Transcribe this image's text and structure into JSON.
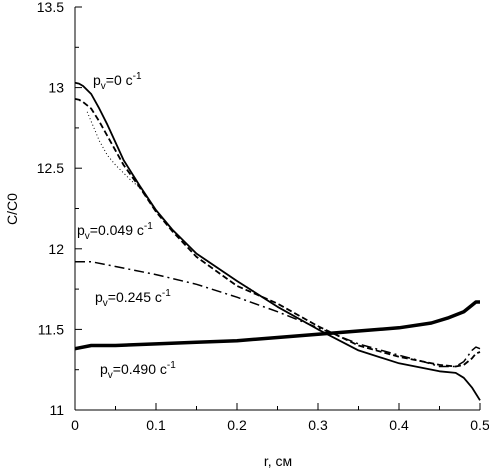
{
  "chart_data": {
    "type": "line",
    "xlabel": "r, см",
    "ylabel": "C/C0",
    "xlim": [
      0,
      0.5
    ],
    "ylim": [
      11,
      13.5
    ],
    "xticks": [
      "0",
      "0.1",
      "0.2",
      "0.3",
      "0.4",
      "0.5"
    ],
    "yticks": [
      "11",
      "11.5",
      "12",
      "12.5",
      "13",
      "13.5"
    ],
    "grid": false,
    "legend": "none",
    "annotations": [
      {
        "id": "a0",
        "prefix": "p",
        "sub": "v",
        "eq": "=0 c",
        "sup": "-1"
      },
      {
        "id": "a1",
        "prefix": "p",
        "sub": "v",
        "eq": "=0.049 c",
        "sup": "-1"
      },
      {
        "id": "a2",
        "prefix": "p",
        "sub": "v",
        "eq": "=0.245 c",
        "sup": "-1"
      },
      {
        "id": "a3",
        "prefix": "p",
        "sub": "v",
        "eq": "=0.490 c",
        "sup": "-1"
      }
    ],
    "series": [
      {
        "style": "solid",
        "x": [
          0,
          0.005,
          0.01,
          0.02,
          0.03,
          0.04,
          0.05,
          0.06,
          0.08,
          0.1,
          0.12,
          0.15,
          0.2,
          0.25,
          0.3,
          0.35,
          0.4,
          0.45,
          0.47,
          0.48,
          0.49,
          0.5
        ],
        "y": [
          13.03,
          13.025,
          13.01,
          12.96,
          12.87,
          12.77,
          12.66,
          12.55,
          12.39,
          12.24,
          12.12,
          11.97,
          11.8,
          11.64,
          11.5,
          11.37,
          11.29,
          11.24,
          11.23,
          11.2,
          11.14,
          11.06
        ]
      },
      {
        "style": "dashed",
        "x": [
          0,
          0.005,
          0.01,
          0.02,
          0.03,
          0.04,
          0.05,
          0.06,
          0.08,
          0.1,
          0.12,
          0.15,
          0.2,
          0.25,
          0.3,
          0.35,
          0.4,
          0.43,
          0.45,
          0.47,
          0.48,
          0.49,
          0.495,
          0.5
        ],
        "y": [
          12.93,
          12.925,
          12.91,
          12.87,
          12.79,
          12.7,
          12.61,
          12.52,
          12.38,
          12.23,
          12.11,
          11.95,
          11.77,
          11.66,
          11.52,
          11.4,
          11.33,
          11.3,
          11.28,
          11.27,
          11.28,
          11.32,
          11.35,
          11.36
        ]
      },
      {
        "style": "dotted",
        "x": [
          0.015,
          0.02,
          0.025,
          0.03,
          0.04,
          0.05,
          0.06,
          0.07,
          0.08,
          0.1,
          0.12,
          0.15,
          0.2,
          0.22
        ],
        "y": [
          12.85,
          12.79,
          12.73,
          12.67,
          12.58,
          12.52,
          12.47,
          12.42,
          12.38,
          12.23,
          12.12,
          11.97,
          11.8,
          11.74
        ]
      },
      {
        "style": "dashdot",
        "x": [
          0,
          0.02,
          0.05,
          0.1,
          0.15,
          0.2,
          0.25,
          0.3,
          0.35,
          0.4,
          0.43,
          0.45,
          0.47,
          0.48,
          0.49,
          0.495,
          0.5
        ],
        "y": [
          11.92,
          11.92,
          11.89,
          11.84,
          11.78,
          11.7,
          11.61,
          11.51,
          11.41,
          11.34,
          11.3,
          11.27,
          11.27,
          11.3,
          11.37,
          11.39,
          11.38
        ]
      },
      {
        "style": "thick",
        "x": [
          0,
          0.02,
          0.05,
          0.1,
          0.15,
          0.2,
          0.25,
          0.3,
          0.35,
          0.4,
          0.44,
          0.46,
          0.48,
          0.49,
          0.495,
          0.5
        ],
        "y": [
          11.38,
          11.4,
          11.4,
          11.41,
          11.42,
          11.43,
          11.45,
          11.47,
          11.49,
          11.51,
          11.54,
          11.57,
          11.61,
          11.65,
          11.67,
          11.67
        ]
      }
    ]
  }
}
